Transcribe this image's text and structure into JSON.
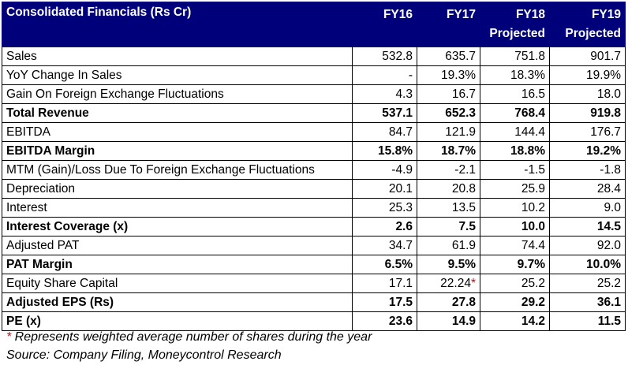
{
  "table": {
    "header": {
      "title": "Consolidated Financials (Rs Cr)",
      "columns": [
        {
          "line1": "FY16",
          "line2": ""
        },
        {
          "line1": "FY17",
          "line2": ""
        },
        {
          "line1": "FY18",
          "line2": "Projected"
        },
        {
          "line1": "FY19",
          "line2": "Projected"
        }
      ]
    },
    "rows": [
      {
        "label": "Sales",
        "bold": false,
        "values": [
          "532.8",
          "635.7",
          "751.8",
          "901.7"
        ]
      },
      {
        "label": "YoY Change In Sales",
        "bold": false,
        "values": [
          "-",
          "19.3%",
          "18.3%",
          "19.9%"
        ]
      },
      {
        "label": "Gain On Foreign Exchange Fluctuations",
        "bold": false,
        "values": [
          "4.3",
          "16.7",
          "16.5",
          "18.0"
        ]
      },
      {
        "label": "Total Revenue",
        "bold": true,
        "values": [
          "537.1",
          "652.3",
          "768.4",
          "919.8"
        ]
      },
      {
        "label": "EBITDA",
        "bold": false,
        "values": [
          "84.7",
          "121.9",
          "144.4",
          "176.7"
        ]
      },
      {
        "label": "EBITDA Margin",
        "bold": true,
        "values": [
          "15.8%",
          "18.7%",
          "18.8%",
          "19.2%"
        ]
      },
      {
        "label": "MTM (Gain)/Loss Due To Foreign Exchange Fluctuations",
        "bold": false,
        "values": [
          "-4.9",
          "-2.1",
          "-1.5",
          "-1.8"
        ]
      },
      {
        "label": "Depreciation",
        "bold": false,
        "values": [
          "20.1",
          "20.8",
          "25.9",
          "28.4"
        ]
      },
      {
        "label": "Interest",
        "bold": false,
        "values": [
          "25.3",
          "13.5",
          "10.2",
          "9.0"
        ]
      },
      {
        "label": "Interest Coverage (x)",
        "bold": true,
        "values": [
          "2.6",
          "7.5",
          "10.0",
          "14.5"
        ]
      },
      {
        "label": "Adjusted PAT",
        "bold": false,
        "values": [
          "34.7",
          "61.9",
          "74.4",
          "92.0"
        ]
      },
      {
        "label": "PAT Margin",
        "bold": true,
        "values": [
          "6.5%",
          "9.5%",
          "9.7%",
          "10.0%"
        ]
      },
      {
        "label": "Equity Share Capital",
        "bold": false,
        "values": [
          "17.1",
          "22.24",
          "25.2",
          "25.2"
        ],
        "starred": 1,
        "star": "*"
      },
      {
        "label": "Adjusted EPS (Rs)",
        "bold": true,
        "values": [
          "17.5",
          "27.8",
          "29.2",
          "36.1"
        ]
      },
      {
        "label": "PE (x)",
        "bold": true,
        "values": [
          "23.6",
          "14.9",
          "14.2",
          "11.5"
        ]
      }
    ]
  },
  "footnotes": {
    "star": "*",
    "note": " Represents weighted average number of shares during the year",
    "source": "Source: Company Filing, Moneycontrol Research"
  },
  "colors": {
    "header_bg": "#00007a",
    "header_text": "#ffffff",
    "star": "#e00000"
  }
}
